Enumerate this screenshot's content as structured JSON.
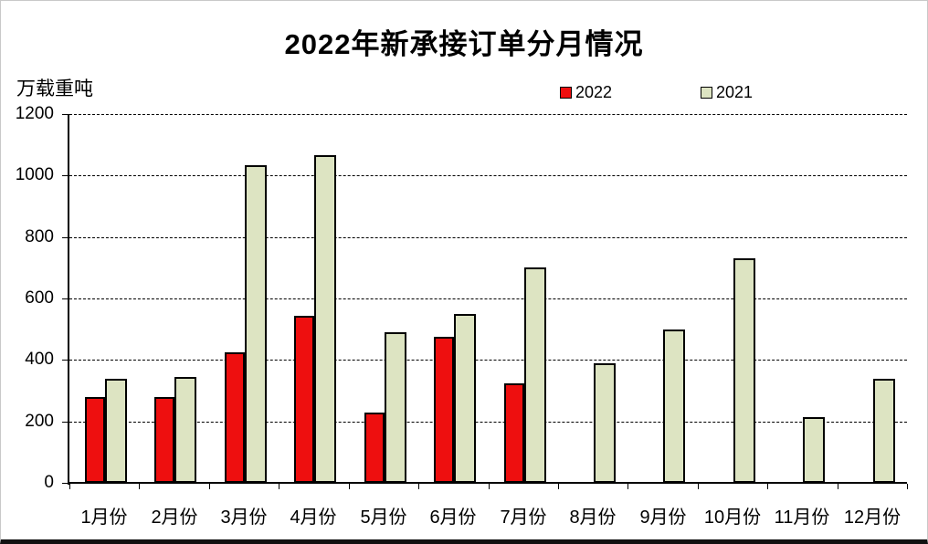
{
  "title": "2022年新承接订单分月情况",
  "y_unit_label": "万载重吨",
  "legend": [
    {
      "label": "2022",
      "color": "#ee0f0f"
    },
    {
      "label": "2021",
      "color": "#dde4c2"
    }
  ],
  "colors": {
    "series_2022": "#ee0f0f",
    "series_2021": "#dde4c2",
    "bar_border": "#000000",
    "grid": "#000000",
    "background": "#ffffff",
    "bottom_edge": "#111111"
  },
  "chart_data": {
    "type": "bar",
    "title": "2022年新承接订单分月情况",
    "xlabel": "",
    "ylabel": "万载重吨",
    "categories": [
      "1月份",
      "2月份",
      "3月份",
      "4月份",
      "5月份",
      "6月份",
      "7月份",
      "8月份",
      "9月份",
      "10月份",
      "11月份",
      "12月份"
    ],
    "series": [
      {
        "name": "2022",
        "color": "#ee0f0f",
        "values": [
          280,
          280,
          425,
          545,
          230,
          475,
          325,
          null,
          null,
          null,
          null,
          null
        ]
      },
      {
        "name": "2021",
        "color": "#dde4c2",
        "values": [
          340,
          345,
          1035,
          1065,
          490,
          550,
          700,
          390,
          500,
          730,
          215,
          340
        ]
      }
    ],
    "ylim": [
      0,
      1200
    ],
    "yticks": [
      0,
      200,
      400,
      600,
      800,
      1000,
      1200
    ],
    "grid": "horizontal-dashed",
    "legend_position": "top"
  }
}
